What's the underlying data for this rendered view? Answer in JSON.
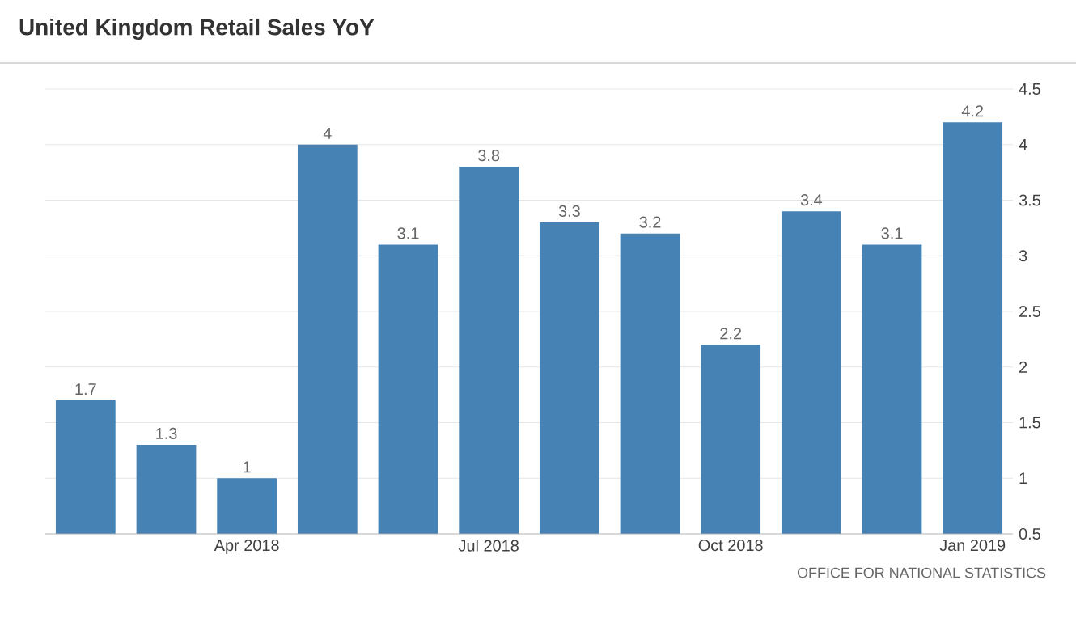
{
  "chart_data": {
    "type": "bar",
    "title": "United Kingdom Retail Sales YoY",
    "categories": [
      null,
      null,
      "Apr 2018",
      null,
      null,
      "Jul 2018",
      null,
      null,
      "Oct 2018",
      null,
      null,
      "Jan 2019"
    ],
    "values": [
      1.7,
      1.3,
      1,
      4,
      3.1,
      3.8,
      3.3,
      3.2,
      2.2,
      3.4,
      3.1,
      4.2
    ],
    "color": "#4682b4",
    "ylim": [
      0.5,
      4.5
    ],
    "yticks": [
      0.5,
      1,
      1.5,
      2,
      2.5,
      3,
      3.5,
      4,
      4.5
    ],
    "grid": "y",
    "data_labels": true,
    "annotations": [
      "OFFICE FOR NATIONAL STATISTICS"
    ]
  }
}
